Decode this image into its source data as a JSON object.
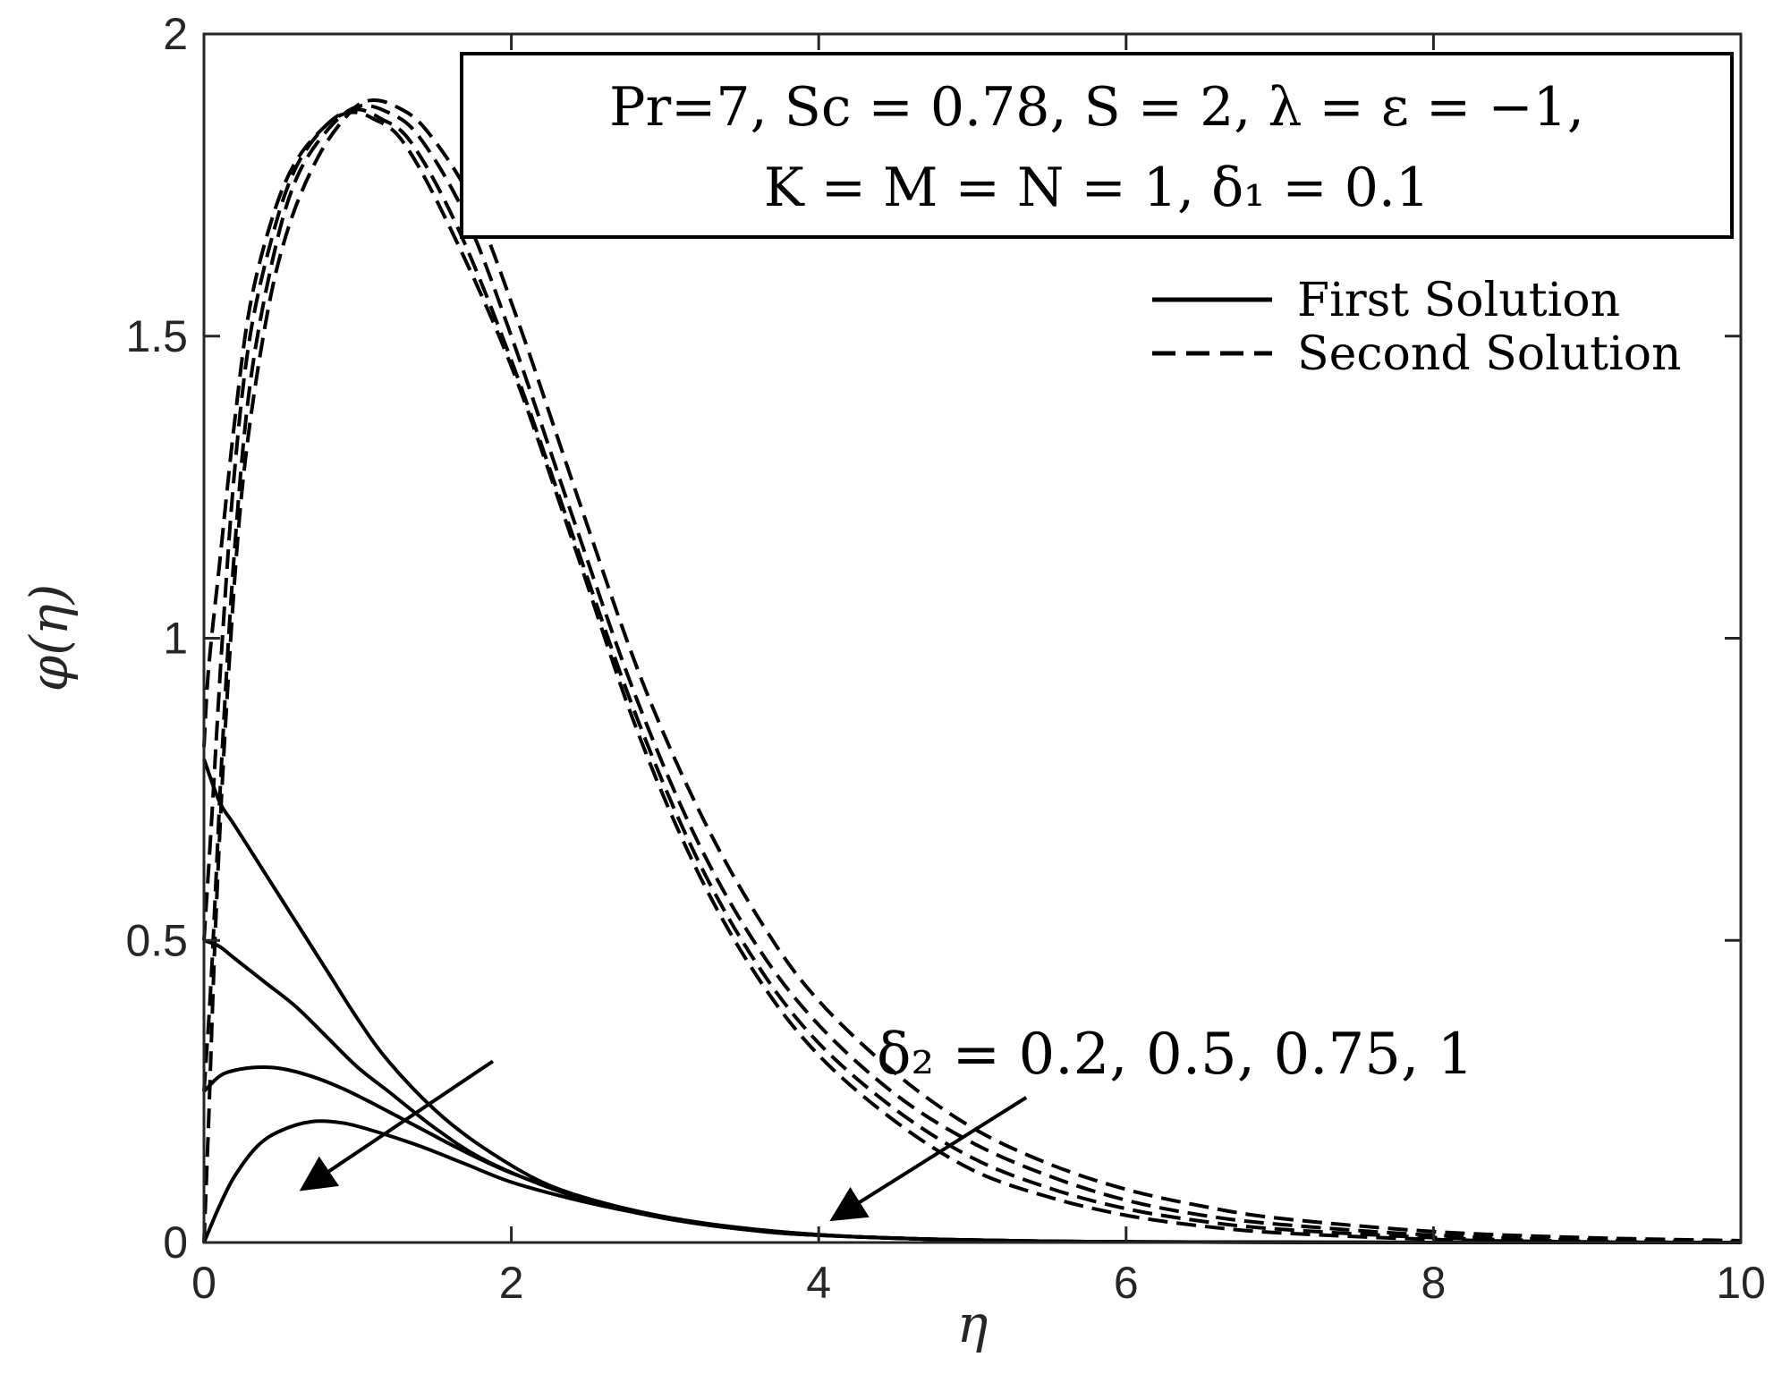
{
  "chart_data": {
    "type": "line",
    "xlabel": "η",
    "ylabel": "φ(η)",
    "xlim": [
      0,
      10
    ],
    "ylim": [
      0,
      2
    ],
    "xticks": [
      "0",
      "2",
      "4",
      "6",
      "8",
      "10"
    ],
    "yticks": [
      "0",
      "0.5",
      "1",
      "1.5",
      "2"
    ],
    "grid": false,
    "box": true,
    "params_line1": "Pr=7, Sc = 0.78, S = 2, λ = ε = −1,",
    "params_line2": "K = M = N = 1, δ₁ = 0.1",
    "legend": {
      "placement": "top-right",
      "entries": [
        {
          "label": "First Solution",
          "style": "solid"
        },
        {
          "label": "Second Solution",
          "style": "dashed"
        }
      ]
    },
    "annotation": "δ₂ = 0.2, 0.5, 0.75, 1",
    "series": [
      {
        "solution": "first",
        "style": "solid",
        "delta2": 0.2,
        "points": [
          [
            0,
            0.8
          ],
          [
            0.1,
            0.73
          ],
          [
            0.2,
            0.69
          ],
          [
            0.4,
            0.61
          ],
          [
            0.6,
            0.53
          ],
          [
            0.8,
            0.45
          ],
          [
            1.0,
            0.37
          ],
          [
            1.2,
            0.3
          ],
          [
            1.5,
            0.22
          ],
          [
            1.8,
            0.16
          ],
          [
            2.2,
            0.1
          ],
          [
            2.6,
            0.065
          ],
          [
            3.0,
            0.04
          ],
          [
            3.5,
            0.022
          ],
          [
            4.0,
            0.012
          ],
          [
            5.0,
            0.004
          ],
          [
            6.0,
            0.001
          ],
          [
            8.0,
            0.0
          ],
          [
            10.0,
            0.0
          ]
        ]
      },
      {
        "solution": "first",
        "style": "solid",
        "delta2": 0.5,
        "points": [
          [
            0,
            0.5
          ],
          [
            0.1,
            0.49
          ],
          [
            0.2,
            0.47
          ],
          [
            0.4,
            0.43
          ],
          [
            0.6,
            0.39
          ],
          [
            0.8,
            0.34
          ],
          [
            1.0,
            0.29
          ],
          [
            1.2,
            0.25
          ],
          [
            1.5,
            0.19
          ],
          [
            1.8,
            0.14
          ],
          [
            2.2,
            0.095
          ],
          [
            2.6,
            0.062
          ],
          [
            3.0,
            0.04
          ],
          [
            3.5,
            0.022
          ],
          [
            4.0,
            0.012
          ],
          [
            5.0,
            0.004
          ],
          [
            6.0,
            0.001
          ],
          [
            8.0,
            0.0
          ],
          [
            10.0,
            0.0
          ]
        ]
      },
      {
        "solution": "first",
        "style": "solid",
        "delta2": 0.75,
        "points": [
          [
            0,
            0.25
          ],
          [
            0.1,
            0.275
          ],
          [
            0.2,
            0.285
          ],
          [
            0.35,
            0.29
          ],
          [
            0.5,
            0.288
          ],
          [
            0.7,
            0.275
          ],
          [
            0.9,
            0.255
          ],
          [
            1.1,
            0.23
          ],
          [
            1.4,
            0.19
          ],
          [
            1.7,
            0.15
          ],
          [
            2.0,
            0.115
          ],
          [
            2.4,
            0.08
          ],
          [
            2.8,
            0.053
          ],
          [
            3.2,
            0.034
          ],
          [
            3.7,
            0.019
          ],
          [
            4.2,
            0.01
          ],
          [
            5.0,
            0.004
          ],
          [
            6.0,
            0.001
          ],
          [
            8.0,
            0.0
          ],
          [
            10.0,
            0.0
          ]
        ]
      },
      {
        "solution": "first",
        "style": "solid",
        "delta2": 1,
        "points": [
          [
            0,
            0.0
          ],
          [
            0.1,
            0.06
          ],
          [
            0.2,
            0.11
          ],
          [
            0.35,
            0.16
          ],
          [
            0.5,
            0.185
          ],
          [
            0.7,
            0.2
          ],
          [
            0.9,
            0.198
          ],
          [
            1.1,
            0.185
          ],
          [
            1.4,
            0.16
          ],
          [
            1.7,
            0.13
          ],
          [
            2.0,
            0.1
          ],
          [
            2.4,
            0.072
          ],
          [
            2.8,
            0.05
          ],
          [
            3.2,
            0.033
          ],
          [
            3.7,
            0.019
          ],
          [
            4.2,
            0.01
          ],
          [
            5.0,
            0.004
          ],
          [
            6.0,
            0.001
          ],
          [
            8.0,
            0.0
          ],
          [
            10.0,
            0.0
          ]
        ]
      },
      {
        "solution": "second",
        "style": "dashed",
        "delta2": 0.2,
        "points": [
          [
            0,
            0.82
          ],
          [
            0.03,
            0.95
          ],
          [
            0.1,
            1.12
          ],
          [
            0.2,
            1.36
          ],
          [
            0.3,
            1.55
          ],
          [
            0.45,
            1.7
          ],
          [
            0.6,
            1.79
          ],
          [
            0.8,
            1.85
          ],
          [
            0.95,
            1.87
          ],
          [
            1.1,
            1.86
          ],
          [
            1.3,
            1.82
          ],
          [
            1.6,
            1.68
          ],
          [
            2.0,
            1.45
          ],
          [
            2.4,
            1.16
          ],
          [
            2.8,
            0.86
          ],
          [
            3.2,
            0.62
          ],
          [
            3.6,
            0.44
          ],
          [
            4.0,
            0.31
          ],
          [
            4.5,
            0.2
          ],
          [
            5.0,
            0.12
          ],
          [
            5.5,
            0.075
          ],
          [
            6.0,
            0.045
          ],
          [
            6.5,
            0.027
          ],
          [
            7.0,
            0.016
          ],
          [
            8.0,
            0.005
          ],
          [
            9.0,
            0.001
          ],
          [
            10.0,
            0.0
          ]
        ]
      },
      {
        "solution": "second",
        "style": "dashed",
        "delta2": 0.5,
        "points": [
          [
            0,
            0.5
          ],
          [
            0.05,
            0.7
          ],
          [
            0.12,
            1.0
          ],
          [
            0.2,
            1.28
          ],
          [
            0.3,
            1.5
          ],
          [
            0.45,
            1.67
          ],
          [
            0.6,
            1.78
          ],
          [
            0.8,
            1.85
          ],
          [
            0.98,
            1.875
          ],
          [
            1.15,
            1.86
          ],
          [
            1.35,
            1.82
          ],
          [
            1.65,
            1.68
          ],
          [
            2.0,
            1.46
          ],
          [
            2.4,
            1.17
          ],
          [
            2.8,
            0.88
          ],
          [
            3.2,
            0.64
          ],
          [
            3.6,
            0.46
          ],
          [
            4.0,
            0.33
          ],
          [
            4.5,
            0.22
          ],
          [
            5.0,
            0.14
          ],
          [
            5.5,
            0.09
          ],
          [
            6.0,
            0.056
          ],
          [
            6.5,
            0.035
          ],
          [
            7.0,
            0.022
          ],
          [
            8.0,
            0.008
          ],
          [
            9.0,
            0.002
          ],
          [
            10.0,
            0.0
          ]
        ]
      },
      {
        "solution": "second",
        "style": "dashed",
        "delta2": 0.75,
        "points": [
          [
            0,
            0.25
          ],
          [
            0.05,
            0.45
          ],
          [
            0.12,
            0.82
          ],
          [
            0.2,
            1.15
          ],
          [
            0.3,
            1.42
          ],
          [
            0.45,
            1.63
          ],
          [
            0.6,
            1.76
          ],
          [
            0.8,
            1.84
          ],
          [
            1.0,
            1.88
          ],
          [
            1.2,
            1.87
          ],
          [
            1.4,
            1.83
          ],
          [
            1.7,
            1.7
          ],
          [
            2.0,
            1.5
          ],
          [
            2.4,
            1.2
          ],
          [
            2.8,
            0.91
          ],
          [
            3.2,
            0.67
          ],
          [
            3.6,
            0.49
          ],
          [
            4.0,
            0.36
          ],
          [
            4.5,
            0.245
          ],
          [
            5.0,
            0.165
          ],
          [
            5.5,
            0.11
          ],
          [
            6.0,
            0.07
          ],
          [
            6.5,
            0.045
          ],
          [
            7.0,
            0.03
          ],
          [
            8.0,
            0.012
          ],
          [
            9.0,
            0.004
          ],
          [
            10.0,
            0.001
          ]
        ]
      },
      {
        "solution": "second",
        "style": "dashed",
        "delta2": 1,
        "points": [
          [
            0,
            0.0
          ],
          [
            0.03,
            0.2
          ],
          [
            0.08,
            0.55
          ],
          [
            0.15,
            0.9
          ],
          [
            0.25,
            1.25
          ],
          [
            0.4,
            1.52
          ],
          [
            0.55,
            1.68
          ],
          [
            0.75,
            1.8
          ],
          [
            0.95,
            1.87
          ],
          [
            1.08,
            1.89
          ],
          [
            1.25,
            1.88
          ],
          [
            1.45,
            1.84
          ],
          [
            1.75,
            1.72
          ],
          [
            2.05,
            1.52
          ],
          [
            2.45,
            1.22
          ],
          [
            2.85,
            0.93
          ],
          [
            3.25,
            0.7
          ],
          [
            3.65,
            0.52
          ],
          [
            4.0,
            0.4
          ],
          [
            4.5,
            0.28
          ],
          [
            5.0,
            0.19
          ],
          [
            5.5,
            0.13
          ],
          [
            6.0,
            0.088
          ],
          [
            6.5,
            0.06
          ],
          [
            7.0,
            0.04
          ],
          [
            8.0,
            0.018
          ],
          [
            9.0,
            0.008
          ],
          [
            10.0,
            0.003
          ]
        ]
      }
    ],
    "arrows": [
      {
        "from": [
          1.88,
          0.3
        ],
        "to": [
          0.65,
          0.09
        ]
      },
      {
        "from": [
          5.35,
          0.24
        ],
        "to": [
          4.1,
          0.04
        ]
      }
    ]
  }
}
